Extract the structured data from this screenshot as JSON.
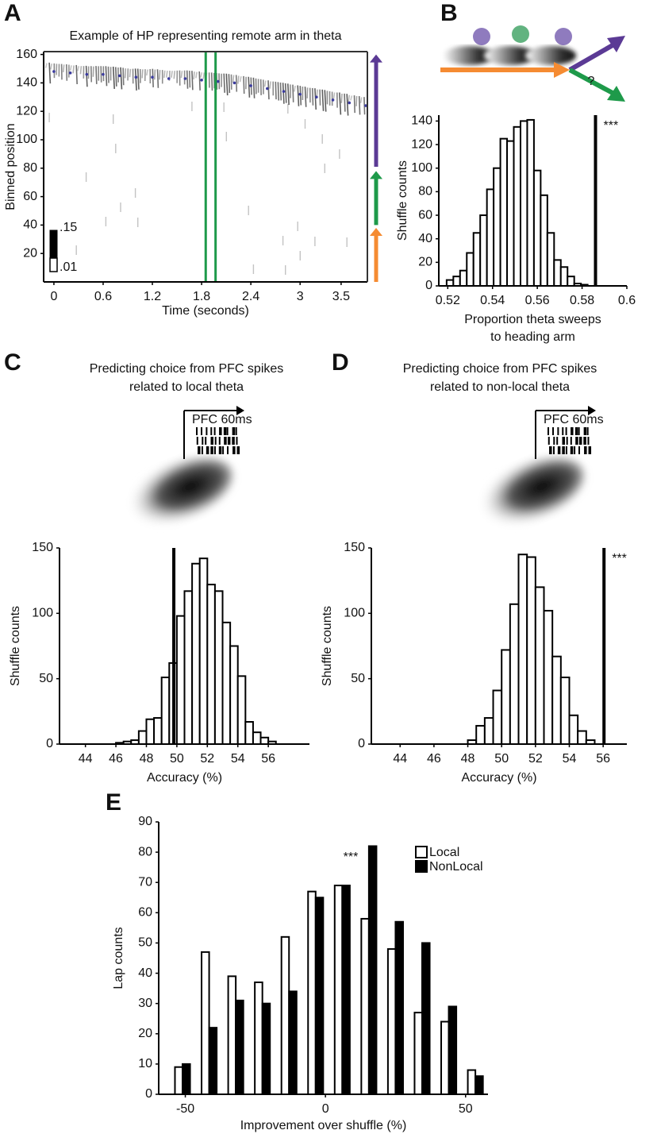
{
  "chart_data": [
    {
      "type": "heatmap",
      "panel": "A",
      "title": "Example of HP representing remote arm in theta",
      "xlabel": "Time (seconds)",
      "ylabel": "Binned position",
      "xlim": [
        -0.125,
        3.82
      ],
      "ylim": [
        0,
        162
      ],
      "xticks": [
        0,
        0.6,
        1.2,
        1.8,
        2.4,
        3,
        3.5
      ],
      "yticks": [
        20,
        40,
        60,
        80,
        100,
        120,
        140,
        160
      ],
      "clim_ticks": [
        {
          "value": 0.15,
          "label": ".15"
        },
        {
          "value": 0.01,
          "label": ".01"
        }
      ],
      "trajectory": {
        "color": "#3b3b9e",
        "x": [
          0,
          0.2,
          0.4,
          0.6,
          0.8,
          1.0,
          1.2,
          1.4,
          1.6,
          1.8,
          2.0,
          2.2,
          2.4,
          2.6,
          2.8,
          3.0,
          3.2,
          3.4,
          3.6,
          3.8
        ],
        "y": [
          148,
          147,
          146,
          146,
          145,
          144,
          144,
          143,
          143,
          142,
          141,
          140,
          138,
          136,
          134,
          132,
          130,
          128,
          126,
          124
        ]
      },
      "highlight_x": [
        1.85,
        1.97
      ],
      "highlight_color": "#1e9a4a",
      "arms": [
        {
          "color": "#f58b32",
          "range": [
            0,
            38
          ]
        },
        {
          "color": "#1e9a4a",
          "range": [
            40,
            78
          ]
        },
        {
          "color": "#5b3a95",
          "range": [
            81,
            160
          ]
        }
      ]
    },
    {
      "type": "histogram",
      "panel": "B",
      "schematic_label": "?",
      "xlabel": [
        "Proportion theta sweeps",
        "to heading arm"
      ],
      "ylabel": "Shuffle counts",
      "bins": [
        0.5195,
        0.5225,
        0.5255,
        0.5285,
        0.5315,
        0.5345,
        0.5375,
        0.5405,
        0.5435,
        0.5465,
        0.5495,
        0.5525,
        0.5555,
        0.5585,
        0.5615,
        0.5645,
        0.5675,
        0.5705,
        0.5735,
        0.5765,
        0.5795,
        0.5825
      ],
      "values": [
        5,
        8,
        13,
        28,
        45,
        60,
        82,
        100,
        125,
        123,
        135,
        140,
        141,
        98,
        77,
        45,
        22,
        16,
        8,
        2,
        1
      ],
      "observed": 0.586,
      "annotation": "***",
      "xlim": [
        0.516,
        0.6
      ],
      "ylim": [
        0,
        145
      ],
      "xticks": [
        0.52,
        0.54,
        0.56,
        0.58,
        0.6
      ],
      "yticks": [
        0,
        20,
        40,
        60,
        80,
        100,
        120,
        140
      ]
    },
    {
      "type": "histogram",
      "panel": "C",
      "title": [
        "Predicting choice from PFC spikes",
        "related to local theta"
      ],
      "inset_label": "PFC 60ms",
      "xlabel": [
        "Accuracy (%)"
      ],
      "ylabel": "Shuffle counts",
      "bins": [
        46,
        46.5,
        47,
        47.5,
        48,
        48.5,
        49,
        49.5,
        50,
        50.5,
        51,
        51.5,
        52,
        52.5,
        53,
        53.5,
        54,
        54.5,
        55,
        55.5,
        56,
        56.5
      ],
      "values": [
        1,
        2,
        3,
        10,
        19,
        20,
        51,
        62,
        98,
        117,
        138,
        142,
        122,
        117,
        93,
        75,
        52,
        17,
        9,
        5,
        2
      ],
      "observed": 49.8,
      "xlim": [
        42.3,
        58.7
      ],
      "ylim": [
        0,
        150
      ],
      "xticks": [
        44,
        46,
        48,
        50,
        52,
        54,
        56
      ],
      "yticks": [
        0,
        50,
        100,
        150
      ]
    },
    {
      "type": "histogram",
      "panel": "D",
      "title": [
        "Predicting choice from PFC spikes",
        "related to non-local theta"
      ],
      "inset_label": "PFC 60ms",
      "xlabel": [
        "Accuracy (%)"
      ],
      "ylabel": "Shuffle counts",
      "bins": [
        48,
        48.5,
        49,
        49.5,
        50,
        50.5,
        51,
        51.5,
        52,
        52.5,
        53,
        53.5,
        54,
        54.5,
        55,
        55.5
      ],
      "values": [
        3,
        14,
        20,
        41,
        72,
        107,
        145,
        143,
        120,
        102,
        67,
        51,
        22,
        10,
        3
      ],
      "observed": 56.05,
      "annotation": "***",
      "xlim": [
        42.3,
        57.4
      ],
      "ylim": [
        0,
        150
      ],
      "xticks": [
        44,
        46,
        48,
        50,
        52,
        54,
        56
      ],
      "yticks": [
        0,
        50,
        100,
        150
      ]
    },
    {
      "type": "grouped_bar",
      "panel": "E",
      "xlabel": "Improvement over shuffle (%)",
      "ylabel": "Lap counts",
      "x": [
        -51,
        -41.5,
        -32,
        -22.5,
        -13,
        -3.5,
        6,
        15.5,
        25,
        34.5,
        44,
        53.5
      ],
      "series": [
        {
          "name": "Local",
          "color": "#ffffff",
          "values": [
            9,
            47,
            39,
            37,
            52,
            67,
            69,
            58,
            48,
            27,
            24,
            8
          ]
        },
        {
          "name": "NonLocal",
          "color": "#000000",
          "values": [
            10,
            22,
            31,
            30,
            34,
            65,
            69,
            82,
            57,
            50,
            29,
            6
          ]
        }
      ],
      "annotation": "***",
      "xlim": [
        -59.5,
        58
      ],
      "ylim": [
        0,
        90
      ],
      "xticks": [
        -50,
        0,
        50
      ],
      "yticks": [
        0,
        10,
        20,
        30,
        40,
        50,
        60,
        70,
        80,
        90
      ]
    }
  ]
}
